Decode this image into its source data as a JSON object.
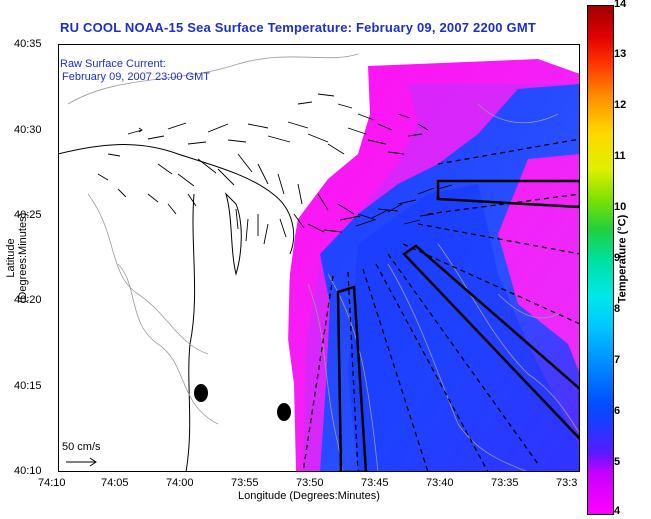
{
  "title": "RU COOL  NOAA-15  Sea Surface Temperature:  February 09, 2007 2200 GMT",
  "legend": {
    "line1": "Raw Surface Current:",
    "line2": "February 09, 2007 23:00 GMT",
    "scale": "50 cm/s"
  },
  "axes": {
    "xlabel": "Longitude (Degrees:Minutes)",
    "ylabel": "Latitude (Degrees:Minutes)",
    "xticks": [
      "74:10",
      "74:05",
      "74:00",
      "73:55",
      "73:50",
      "73:45",
      "73:40",
      "73:35",
      "73:3"
    ],
    "yticks": [
      "40:35",
      "40:30",
      "40:25",
      "40:20",
      "40:15",
      "40:10"
    ]
  },
  "colorbar": {
    "label": "Temperature (°C)",
    "ticks": [
      "14",
      "13",
      "12",
      "11",
      "10",
      "9",
      "8",
      "7",
      "6",
      "5",
      "4"
    ],
    "min": 4,
    "max": 14
  },
  "colors": {
    "title": "#1a2fd0",
    "warm_water": "#ff00ff",
    "cold_water": "#1a40ff"
  }
}
